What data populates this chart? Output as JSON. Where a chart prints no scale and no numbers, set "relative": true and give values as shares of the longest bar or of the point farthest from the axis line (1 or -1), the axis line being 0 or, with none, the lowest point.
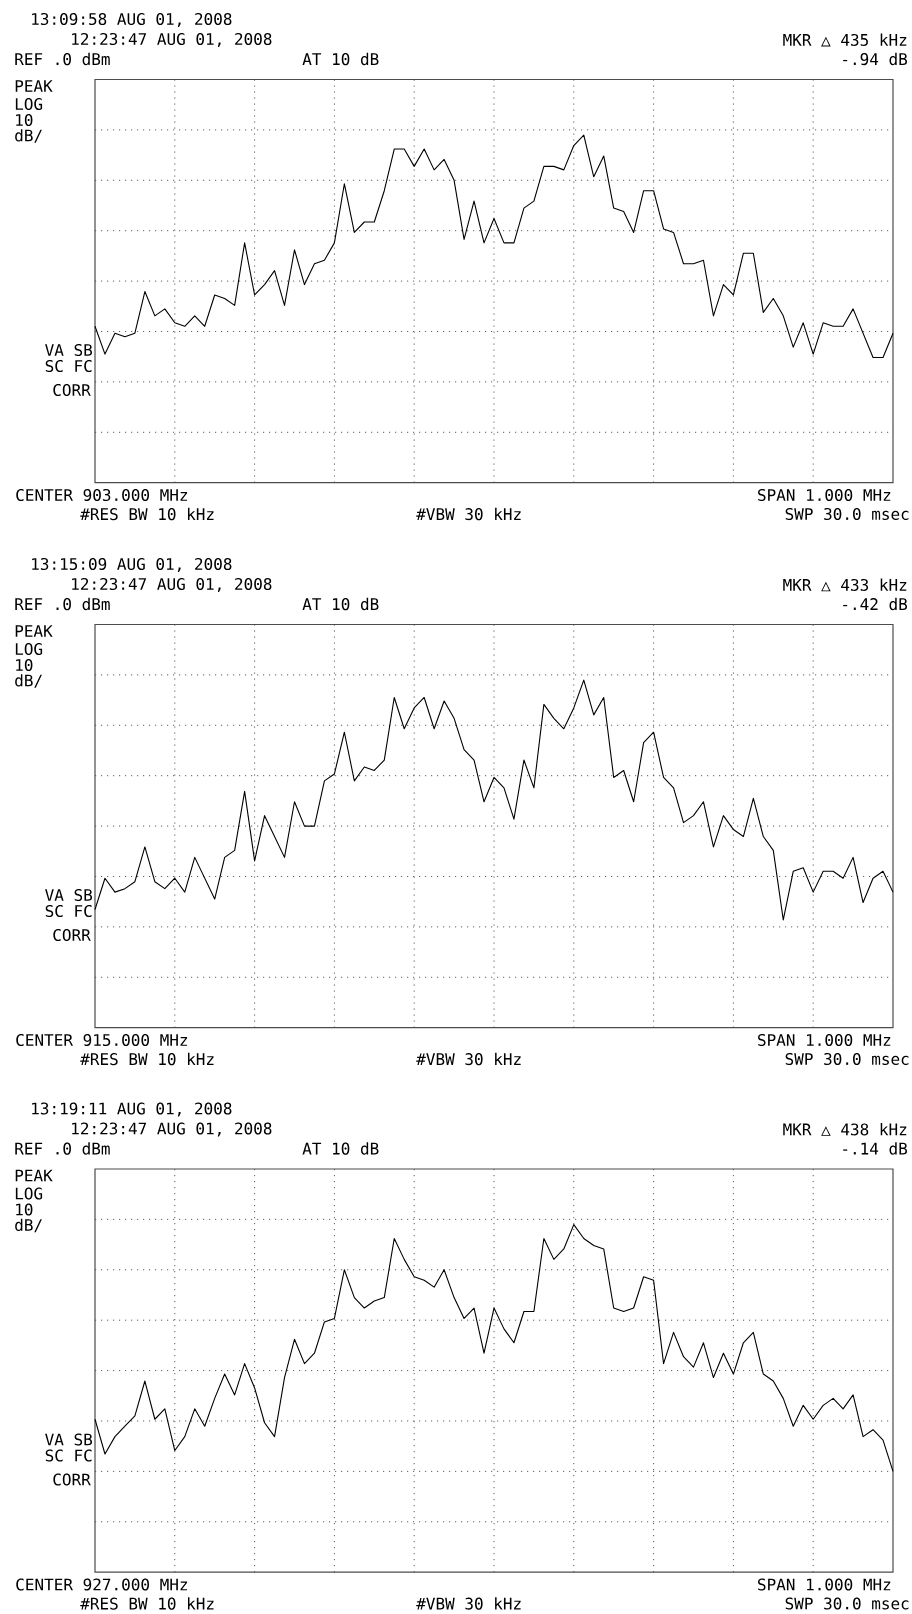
{
  "chart_data": [
    {
      "type": "line",
      "title": "13:09:58 AUG 01, 2008",
      "subtitle": "12:23:47 AUG 01, 2008",
      "relative": true,
      "grid": true,
      "categories": [
        null,
        null,
        null,
        null,
        null,
        null,
        null,
        null,
        null,
        null,
        null,
        null,
        null,
        null,
        null,
        null,
        null,
        null,
        null,
        null,
        null,
        null,
        null,
        null,
        null,
        null,
        null,
        null,
        null,
        null,
        null,
        null,
        null,
        null,
        null,
        null,
        null,
        null,
        null,
        null,
        null,
        null,
        null,
        null,
        null,
        null,
        null,
        null,
        null,
        null,
        null,
        null,
        null,
        null,
        null,
        null,
        null,
        null,
        null,
        null,
        null,
        null,
        null,
        null,
        null,
        null,
        null,
        null,
        null,
        null,
        null,
        null,
        null,
        null,
        null,
        null,
        null,
        null,
        null,
        null,
        null
      ],
      "series": [
        {
          "color": "#000000",
          "values": [
            0.45,
            0.37,
            0.43,
            0.42,
            0.43,
            0.55,
            0.48,
            0.5,
            0.46,
            0.45,
            0.48,
            0.45,
            0.54,
            0.53,
            0.51,
            0.69,
            0.54,
            0.57,
            0.61,
            0.51,
            0.67,
            0.57,
            0.63,
            0.64,
            0.69,
            0.86,
            0.72,
            0.75,
            0.75,
            0.84,
            0.96,
            0.96,
            0.91,
            0.96,
            0.9,
            0.93,
            0.87,
            0.7,
            0.81,
            0.69,
            0.76,
            0.69,
            0.69,
            0.79,
            0.81,
            0.91,
            0.91,
            0.9,
            0.97,
            1.0,
            0.88,
            0.94,
            0.79,
            0.78,
            0.72,
            0.84,
            0.84,
            0.73,
            0.72,
            0.63,
            0.63,
            0.64,
            0.48,
            0.57,
            0.54,
            0.66,
            0.66,
            0.49,
            0.53,
            0.48,
            0.39,
            0.46,
            0.37,
            0.46,
            0.45,
            0.45,
            0.5,
            0.43,
            0.36,
            0.36,
            0.43
          ]
        }
      ],
      "annotations": [
        "REF .0 dBm",
        "AT 10 dB",
        "MKR △ 435 kHz",
        "-.94 dB",
        "PEAK",
        "LOG",
        "10",
        "dB/",
        "VA SB",
        "SC FC",
        "CORR",
        "CENTER 903.000 MHz",
        "#RES BW 10 kHz",
        "#VBW 30 kHz",
        "SPAN 1.000 MHz",
        "SWP 30.0 msec"
      ]
    },
    {
      "type": "line",
      "title": "13:15:09 AUG 01, 2008",
      "subtitle": "12:23:47 AUG 01, 2008",
      "relative": true,
      "grid": true,
      "categories": [
        null,
        null,
        null,
        null,
        null,
        null,
        null,
        null,
        null,
        null,
        null,
        null,
        null,
        null,
        null,
        null,
        null,
        null,
        null,
        null,
        null,
        null,
        null,
        null,
        null,
        null,
        null,
        null,
        null,
        null,
        null,
        null,
        null,
        null,
        null,
        null,
        null,
        null,
        null,
        null,
        null,
        null,
        null,
        null,
        null,
        null,
        null,
        null,
        null,
        null,
        null,
        null,
        null,
        null,
        null,
        null,
        null,
        null,
        null,
        null,
        null,
        null,
        null,
        null,
        null,
        null,
        null,
        null,
        null,
        null,
        null,
        null,
        null,
        null,
        null,
        null,
        null,
        null,
        null,
        null,
        null
      ],
      "series": [
        {
          "color": "#000000",
          "values": [
            0.34,
            0.43,
            0.39,
            0.4,
            0.42,
            0.52,
            0.42,
            0.4,
            0.43,
            0.39,
            0.49,
            0.43,
            0.37,
            0.49,
            0.51,
            0.68,
            0.48,
            0.61,
            0.55,
            0.49,
            0.65,
            0.58,
            0.58,
            0.71,
            0.73,
            0.85,
            0.71,
            0.75,
            0.74,
            0.77,
            0.95,
            0.86,
            0.92,
            0.95,
            0.86,
            0.94,
            0.89,
            0.8,
            0.77,
            0.65,
            0.72,
            0.69,
            0.6,
            0.77,
            0.69,
            0.93,
            0.89,
            0.86,
            0.92,
            1.0,
            0.9,
            0.95,
            0.72,
            0.74,
            0.65,
            0.82,
            0.85,
            0.72,
            0.69,
            0.59,
            0.61,
            0.65,
            0.52,
            0.61,
            0.57,
            0.55,
            0.66,
            0.55,
            0.51,
            0.31,
            0.45,
            0.46,
            0.39,
            0.45,
            0.45,
            0.43,
            0.49,
            0.36,
            0.43,
            0.45,
            0.39
          ]
        }
      ],
      "annotations": [
        "REF .0 dBm",
        "AT 10 dB",
        "MKR △ 433 kHz",
        "-.42 dB",
        "PEAK",
        "LOG",
        "10",
        "dB/",
        "VA SB",
        "SC FC",
        "CORR",
        "CENTER 915.000 MHz",
        "#RES BW 10 kHz",
        "#VBW 30 kHz",
        "SPAN 1.000 MHz",
        "SWP 30.0 msec"
      ]
    },
    {
      "type": "line",
      "title": "13:19:11 AUG 01, 2008",
      "subtitle": "12:23:47 AUG 01, 2008",
      "relative": true,
      "grid": true,
      "categories": [
        null,
        null,
        null,
        null,
        null,
        null,
        null,
        null,
        null,
        null,
        null,
        null,
        null,
        null,
        null,
        null,
        null,
        null,
        null,
        null,
        null,
        null,
        null,
        null,
        null,
        null,
        null,
        null,
        null,
        null,
        null,
        null,
        null,
        null,
        null,
        null,
        null,
        null,
        null,
        null,
        null,
        null,
        null,
        null,
        null,
        null,
        null,
        null,
        null,
        null,
        null,
        null,
        null,
        null,
        null,
        null,
        null,
        null,
        null,
        null,
        null,
        null,
        null,
        null,
        null,
        null,
        null,
        null,
        null,
        null,
        null,
        null,
        null,
        null,
        null,
        null,
        null,
        null,
        null,
        null,
        null
      ],
      "series": [
        {
          "color": "#000000",
          "values": [
            0.44,
            0.34,
            0.39,
            0.42,
            0.45,
            0.55,
            0.44,
            0.47,
            0.35,
            0.39,
            0.47,
            0.42,
            0.5,
            0.57,
            0.51,
            0.6,
            0.53,
            0.43,
            0.39,
            0.56,
            0.67,
            0.6,
            0.63,
            0.72,
            0.73,
            0.87,
            0.79,
            0.76,
            0.78,
            0.79,
            0.96,
            0.9,
            0.85,
            0.84,
            0.82,
            0.87,
            0.79,
            0.73,
            0.76,
            0.63,
            0.76,
            0.7,
            0.66,
            0.75,
            0.75,
            0.96,
            0.9,
            0.93,
            1.0,
            0.96,
            0.94,
            0.93,
            0.76,
            0.75,
            0.76,
            0.85,
            0.84,
            0.6,
            0.69,
            0.62,
            0.59,
            0.66,
            0.56,
            0.63,
            0.57,
            0.66,
            0.69,
            0.57,
            0.55,
            0.5,
            0.42,
            0.48,
            0.44,
            0.48,
            0.5,
            0.47,
            0.51,
            0.39,
            0.41,
            0.38,
            0.29
          ]
        }
      ],
      "annotations": [
        "REF .0 dBm",
        "AT 10 dB",
        "MKR △ 438 kHz",
        "-.14 dB",
        "PEAK",
        "LOG",
        "10",
        "dB/",
        "VA SB",
        "SC FC",
        "CORR",
        "CENTER 927.000 MHz",
        "#RES BW 10 kHz",
        "#VBW 30 kHz",
        "SPAN 1.000 MHz",
        "SWP 30.0 msec"
      ]
    }
  ]
}
